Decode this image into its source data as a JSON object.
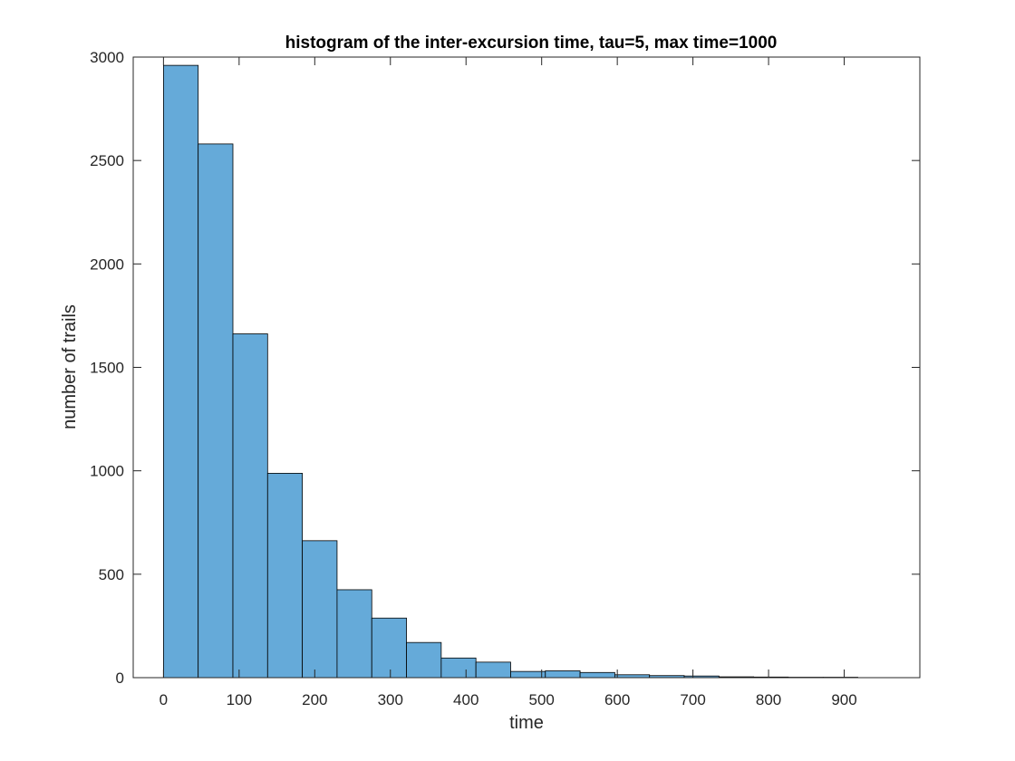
{
  "chart_data": {
    "type": "bar",
    "title": "histogram of the inter-excursion time, tau=5, max time=1000",
    "xlabel": "time",
    "ylabel": "number of trails",
    "xlim": [
      -40,
      1000
    ],
    "ylim": [
      0,
      3000
    ],
    "xticks": [
      0,
      100,
      200,
      300,
      400,
      500,
      600,
      700,
      800,
      900
    ],
    "yticks": [
      0,
      500,
      1000,
      1500,
      2000,
      2500,
      3000
    ],
    "grid": false,
    "bin_edges": [
      0,
      45.9,
      91.8,
      137.7,
      183.6,
      229.5,
      275.4,
      321.3,
      367.2,
      413.1,
      459,
      504.9,
      550.8,
      596.7,
      642.6,
      688.5,
      734.4,
      780.3,
      826.2,
      872.1,
      918
    ],
    "values": [
      2960,
      2580,
      1662,
      988,
      662,
      425,
      288,
      170,
      95,
      75,
      30,
      33,
      25,
      14,
      10,
      8,
      4,
      3,
      2,
      2
    ],
    "colors": {
      "bar_fill": "#65aad9",
      "bar_edge": "#000000",
      "axes": "#262626"
    }
  }
}
